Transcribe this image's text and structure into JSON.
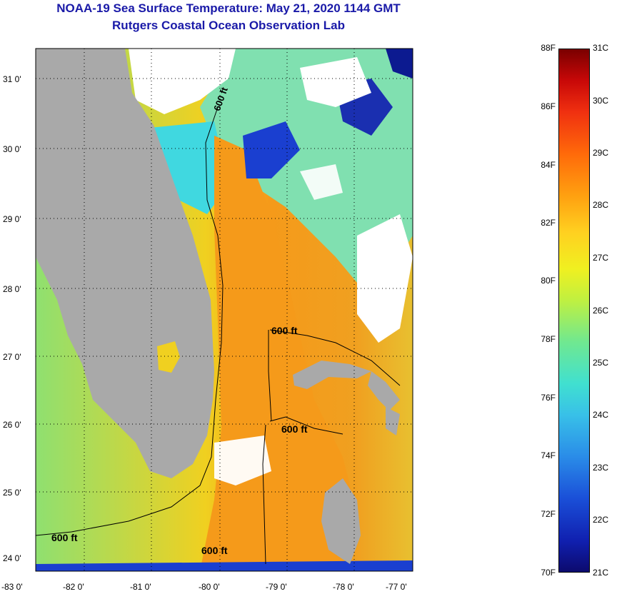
{
  "title": {
    "line1": "NOAA-19 Sea Surface Temperature:  May 21, 2020 1144 GMT",
    "line2": "Rutgers Coastal Ocean Observation Lab"
  },
  "map": {
    "lat_labels": [
      "31 0'",
      "30 0'",
      "29 0'",
      "28 0'",
      "27 0'",
      "26 0'",
      "25 0'",
      "24 0'"
    ],
    "lon_labels": [
      "-83 0'",
      "-82 0'",
      "-81 0'",
      "-80 0'",
      "-79 0'",
      "-78 0'",
      "-77 0'"
    ],
    "contour_label": "600 ft",
    "colors": {
      "land": "#a9a9a9",
      "cloud": "#ffffff",
      "gulf_stream": "#f59a1a",
      "warm": "#f0d020",
      "shelf": "#80e8a8",
      "cold": "#1a3fd0"
    }
  },
  "colorbar": {
    "fahrenheit": [
      "88F",
      "86F",
      "84F",
      "82F",
      "80F",
      "78F",
      "76F",
      "74F",
      "72F",
      "70F"
    ],
    "celsius": [
      "31C",
      "30C",
      "29C",
      "28C",
      "27C",
      "26C",
      "25C",
      "24C",
      "23C",
      "22C",
      "21C"
    ]
  }
}
